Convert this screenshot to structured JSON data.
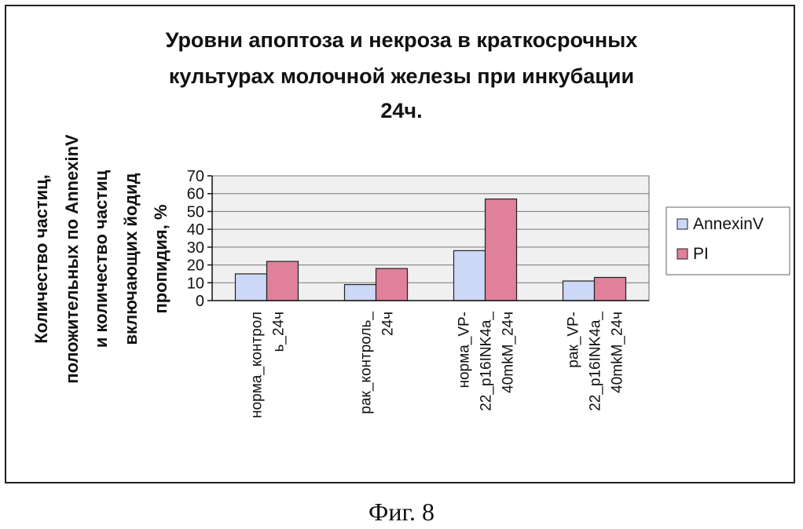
{
  "chart_data": {
    "type": "bar",
    "title_lines": [
      "Уровни апоптоза и некроза в краткосрочных",
      "культурах молочной железы при инкубации",
      "24ч."
    ],
    "ylabel_lines": [
      "Количество частиц,",
      "положительных по AnnexinV",
      "и количество частиц",
      "включающих йодид",
      "пропидия, %"
    ],
    "ylim": [
      0,
      70
    ],
    "yticks": [
      0,
      10,
      20,
      30,
      40,
      50,
      60,
      70
    ],
    "grid": true,
    "legend_position": "right",
    "categories": [
      [
        "норма_контрол",
        "ь_24ч"
      ],
      [
        "рак_контроль_",
        "24ч"
      ],
      [
        "норма_VP-",
        "22_p16INK4a_",
        "40mkM_24ч"
      ],
      [
        "рак_VP-",
        "22_p16INK4a_",
        "40mkM_24ч"
      ]
    ],
    "series": [
      {
        "name": "AnnexinV",
        "color": "#cdd8f8",
        "values": [
          15,
          9,
          28,
          11
        ]
      },
      {
        "name": "PI",
        "color": "#e0809a",
        "values": [
          22,
          18,
          57,
          13
        ]
      }
    ]
  },
  "caption": "Фиг. 8"
}
